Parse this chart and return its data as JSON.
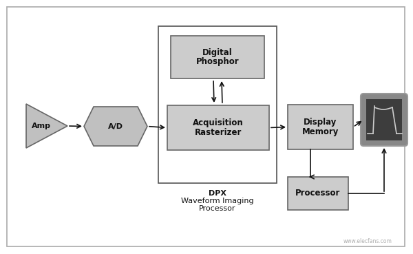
{
  "bg_color": "#ffffff",
  "box_fill": "#cccccc",
  "box_stroke": "#666666",
  "arrow_color": "#111111",
  "outer_border_color": "#aaaaaa",
  "screen_bg": "#444444",
  "screen_frame": "#888888",
  "screen_wave": "#cccccc",
  "amp_label": "Amp",
  "ad_label": "A/D",
  "acq_label_line1": "Acquisition",
  "acq_label_line2": "Rasterizer",
  "digital_label_line1": "Digital",
  "digital_label_line2": "Phosphor",
  "display_label_line1": "Display",
  "display_label_line2": "Memory",
  "processor_label": "Processor",
  "dpx_label_line1": "DPX",
  "dpx_label_line2": "Waveform Imaging",
  "dpx_label_line3": "Processor",
  "watermark": "www.elecfans.com",
  "fig_width": 6.0,
  "fig_height": 3.69,
  "dpi": 100
}
